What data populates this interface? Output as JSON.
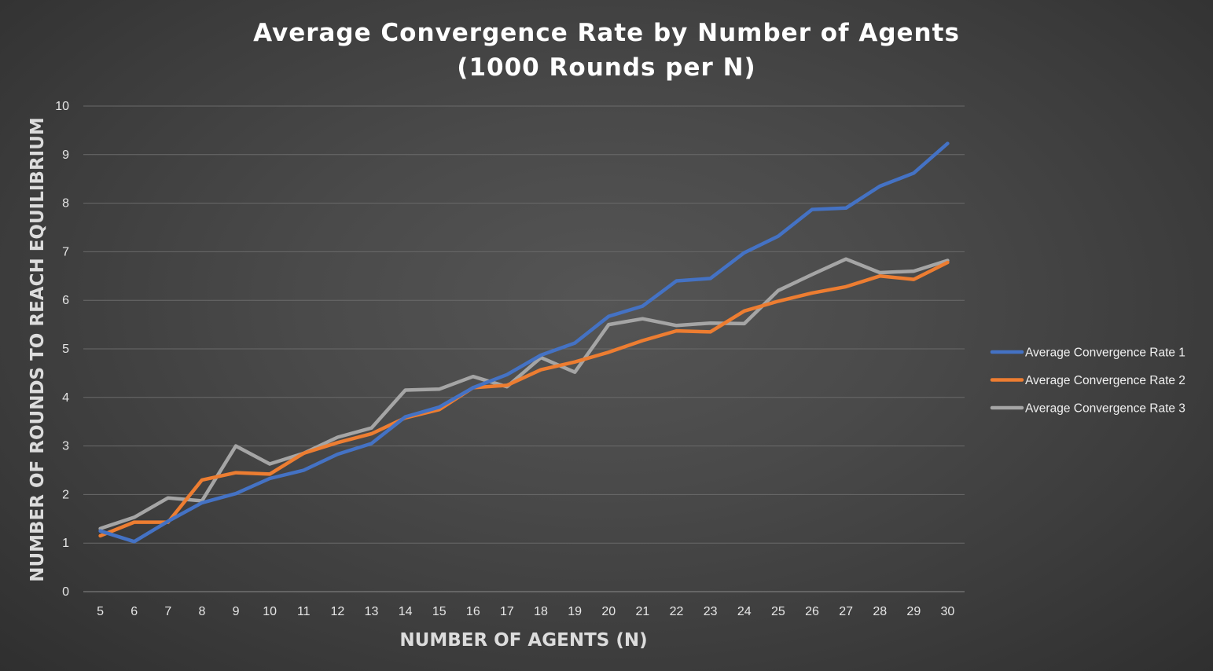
{
  "chart_data": {
    "type": "line",
    "title": "Average Convergence Rate by Number of Agents",
    "subtitle": "(1000 Rounds per N)",
    "xlabel": "NUMBER OF AGENTS (N)",
    "ylabel": "NUMBER OF ROUNDS TO REACH EQUILIBRIUM",
    "ylim": [
      0,
      10
    ],
    "yticks": [
      0,
      1,
      2,
      3,
      4,
      5,
      6,
      7,
      8,
      9,
      10
    ],
    "grid": true,
    "legend_position": "right",
    "categories": [
      "5",
      "6",
      "7",
      "8",
      "9",
      "10",
      "11",
      "12",
      "13",
      "14",
      "15",
      "16",
      "17",
      "18",
      "19",
      "20",
      "21",
      "22",
      "23",
      "24",
      "25",
      "26",
      "27",
      "28",
      "29",
      "30"
    ],
    "series": [
      {
        "name": "Average Convergence Rate 1",
        "color": "#4472c4",
        "values": [
          1.25,
          1.03,
          1.45,
          1.83,
          2.02,
          2.33,
          2.5,
          2.83,
          3.05,
          3.6,
          3.8,
          4.2,
          4.47,
          4.87,
          5.12,
          5.67,
          5.88,
          6.4,
          6.45,
          6.98,
          7.32,
          7.87,
          7.9,
          8.35,
          8.62,
          9.23
        ]
      },
      {
        "name": "Average Convergence Rate 2",
        "color": "#ed7d31",
        "values": [
          1.15,
          1.43,
          1.43,
          2.3,
          2.45,
          2.42,
          2.85,
          3.07,
          3.25,
          3.58,
          3.75,
          4.2,
          4.25,
          4.57,
          4.73,
          4.93,
          5.17,
          5.37,
          5.35,
          5.78,
          5.98,
          6.15,
          6.28,
          6.5,
          6.43,
          6.78
        ]
      },
      {
        "name": "Average Convergence Rate 3",
        "color": "#a5a5a5",
        "values": [
          1.3,
          1.53,
          1.93,
          1.87,
          3.0,
          2.63,
          2.85,
          3.18,
          3.37,
          4.15,
          4.17,
          4.43,
          4.22,
          4.82,
          4.52,
          5.5,
          5.62,
          5.48,
          5.53,
          5.52,
          6.2,
          6.53,
          6.85,
          6.57,
          6.6,
          6.82
        ]
      }
    ]
  }
}
